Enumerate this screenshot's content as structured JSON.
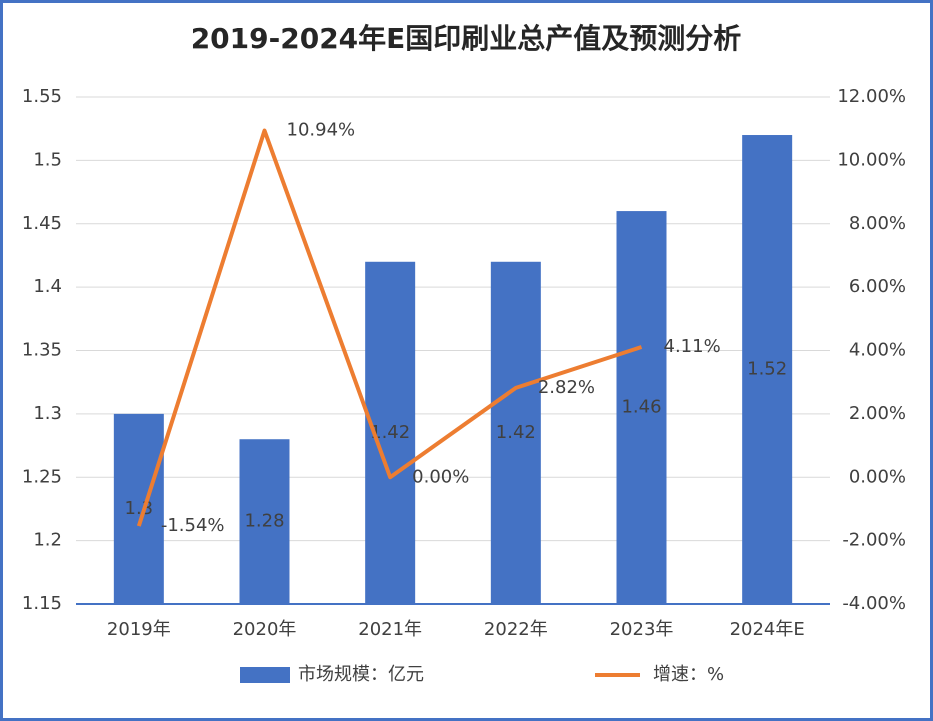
{
  "chart_data": {
    "type": "bar",
    "title": "2019-2024年E国印刷业总产值及预测分析",
    "categories": [
      "2019年",
      "2020年",
      "2021年",
      "2022年",
      "2023年",
      "2024年E"
    ],
    "series": [
      {
        "name": "市场规模：亿元",
        "type": "bar",
        "color": "#4472c4",
        "values": [
          1.3,
          1.28,
          1.42,
          1.42,
          1.46,
          1.52
        ]
      },
      {
        "name": "增速：%",
        "type": "line",
        "axis": "y2",
        "color": "#ed7d31",
        "values": [
          -1.54,
          10.94,
          0.0,
          2.82,
          4.11,
          null
        ],
        "value_labels": [
          "-1.54%",
          "10.94%",
          "0.00%",
          "2.82%",
          "4.11%",
          null
        ]
      }
    ],
    "ylim": [
      1.15,
      1.55
    ],
    "yticks": [
      1.15,
      1.2,
      1.25,
      1.3,
      1.35,
      1.4,
      1.45,
      1.5,
      1.55
    ],
    "y2lim": [
      -4,
      12
    ],
    "y2ticks": [
      {
        "value": -4,
        "label": "-4.00%"
      },
      {
        "value": -2,
        "label": "-2.00%"
      },
      {
        "value": 0,
        "label": "0.00%"
      },
      {
        "value": 2,
        "label": "2.00%"
      },
      {
        "value": 4,
        "label": "4.00%"
      },
      {
        "value": 6,
        "label": "6.00%"
      },
      {
        "value": 8,
        "label": "8.00%"
      },
      {
        "value": 10,
        "label": "10.00%"
      },
      {
        "value": 12,
        "label": "12.00%"
      }
    ],
    "grid": true,
    "legend": "bottom"
  }
}
